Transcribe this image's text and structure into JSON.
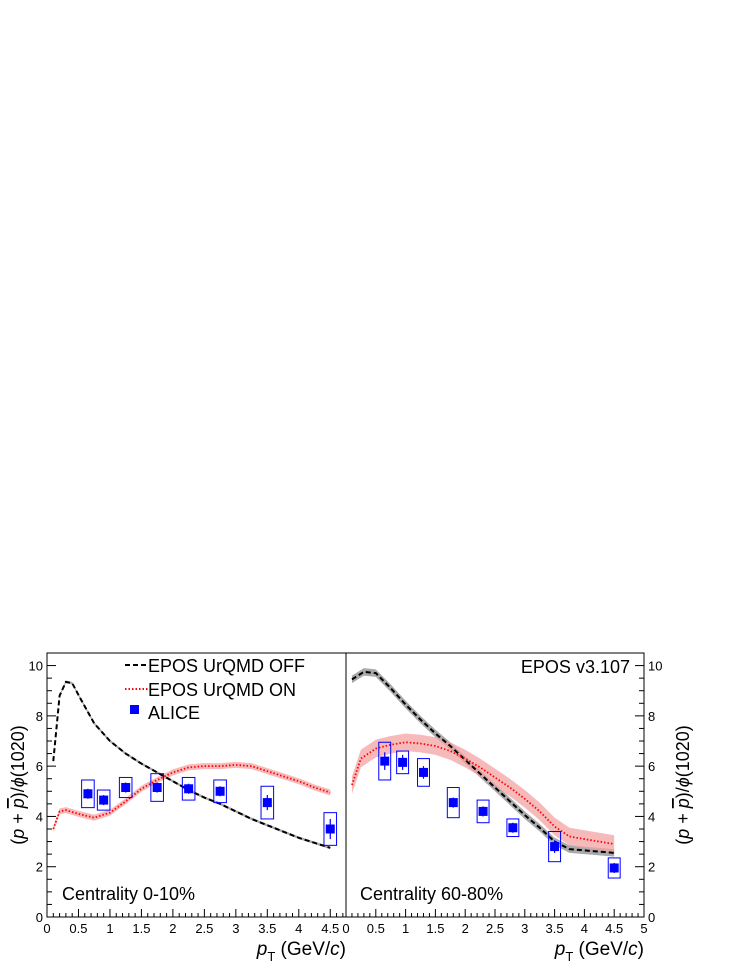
{
  "colors": {
    "off": "#000000",
    "on": "#ff0000",
    "off_band": "#9a9a9a",
    "on_band": "#f4a3a3",
    "alice": "#0000ff"
  },
  "legend": {
    "off": "EPOS UrQMD OFF",
    "on": "EPOS UrQMD ON",
    "alice": "ALICE"
  },
  "model_label": "EPOS v3.107",
  "chart_data": [
    {
      "type": "line",
      "panel": "left",
      "label": "Centrality 0-10%",
      "xlabel_main": "p",
      "xlabel_sub": "T",
      "xlabel_rest": " (GeV/c)",
      "ylabel": "(p + p)/ϕ(1020)",
      "xlim": [
        0,
        4.75
      ],
      "ylim": [
        0,
        10.5
      ],
      "x_ticks": [
        "0",
        "0.5",
        "1",
        "1.5",
        "2",
        "2.5",
        "3",
        "3.5",
        "4",
        "4.5"
      ],
      "y_ticks": [
        "0",
        "2",
        "4",
        "6",
        "8",
        "10"
      ],
      "legend_position": "top-right",
      "series": [
        {
          "name": "EPOS UrQMD OFF",
          "style": "dashed",
          "x": [
            0.1,
            0.2,
            0.3,
            0.4,
            0.55,
            0.75,
            1.0,
            1.25,
            1.5,
            1.75,
            2.0,
            2.25,
            2.5,
            2.75,
            3.0,
            3.25,
            3.5,
            3.75,
            4.0,
            4.25,
            4.5
          ],
          "y": [
            6.2,
            8.8,
            9.35,
            9.3,
            8.6,
            7.7,
            7.0,
            6.5,
            6.1,
            5.75,
            5.4,
            5.05,
            4.75,
            4.5,
            4.2,
            3.9,
            3.65,
            3.4,
            3.15,
            2.95,
            2.75
          ],
          "band": 0.05
        },
        {
          "name": "EPOS UrQMD ON",
          "style": "dotted",
          "x": [
            0.1,
            0.2,
            0.3,
            0.5,
            0.75,
            1.0,
            1.25,
            1.5,
            1.75,
            2.0,
            2.25,
            2.5,
            2.75,
            3.0,
            3.25,
            3.5,
            3.75,
            4.0,
            4.25,
            4.5
          ],
          "y": [
            3.5,
            4.2,
            4.25,
            4.1,
            3.95,
            4.15,
            4.6,
            5.1,
            5.45,
            5.75,
            5.95,
            6.0,
            6.0,
            6.05,
            6.0,
            5.8,
            5.6,
            5.4,
            5.15,
            4.95
          ],
          "band": 0.12
        },
        {
          "name": "ALICE",
          "style": "points",
          "x": [
            0.65,
            0.9,
            1.25,
            1.75,
            2.25,
            2.75,
            3.5,
            4.5
          ],
          "y": [
            4.9,
            4.65,
            5.15,
            5.15,
            5.1,
            5.0,
            4.55,
            3.5
          ],
          "stat_err": [
            0.2,
            0.2,
            0.2,
            0.2,
            0.2,
            0.2,
            0.3,
            0.4
          ],
          "sys_err": [
            0.55,
            0.4,
            0.4,
            0.55,
            0.45,
            0.45,
            0.65,
            0.65
          ],
          "box_halfwidth": [
            0.1,
            0.1,
            0.1,
            0.1,
            0.1,
            0.1,
            0.1,
            0.1
          ]
        }
      ]
    },
    {
      "type": "line",
      "panel": "right",
      "label": "Centrality 60-80%",
      "xlabel_main": "p",
      "xlabel_sub": "T",
      "xlabel_rest": " (GeV/c)",
      "ylabel": "(p + p)/ϕ(1020)",
      "xlim": [
        0,
        5
      ],
      "ylim": [
        0,
        10.5
      ],
      "x_ticks": [
        "0",
        "0.5",
        "1",
        "1.5",
        "2",
        "2.5",
        "3",
        "3.5",
        "4",
        "4.5",
        "5"
      ],
      "y_ticks": [
        "0",
        "2",
        "4",
        "6",
        "8",
        "10"
      ],
      "series": [
        {
          "name": "EPOS UrQMD OFF",
          "style": "dashed",
          "x": [
            0.1,
            0.3,
            0.5,
            0.75,
            1.0,
            1.25,
            1.5,
            1.75,
            2.0,
            2.25,
            2.5,
            2.75,
            3.0,
            3.25,
            3.5,
            3.75,
            4.0,
            4.25,
            4.5
          ],
          "y": [
            9.45,
            9.75,
            9.7,
            9.1,
            8.45,
            7.85,
            7.3,
            6.8,
            6.25,
            5.7,
            5.15,
            4.6,
            4.05,
            3.55,
            3.0,
            2.7,
            2.65,
            2.6,
            2.55
          ],
          "band": 0.15
        },
        {
          "name": "EPOS UrQMD ON",
          "style": "dotted",
          "x": [
            0.1,
            0.25,
            0.5,
            0.75,
            1.0,
            1.25,
            1.5,
            1.75,
            2.0,
            2.25,
            2.5,
            2.75,
            3.0,
            3.25,
            3.5,
            3.75,
            4.0,
            4.25,
            4.5
          ],
          "y": [
            5.25,
            6.3,
            6.7,
            6.85,
            6.95,
            6.9,
            6.8,
            6.6,
            6.3,
            5.95,
            5.55,
            5.15,
            4.7,
            4.2,
            3.6,
            3.2,
            3.1,
            3.0,
            2.9
          ],
          "band": 0.35
        },
        {
          "name": "ALICE",
          "style": "points",
          "x": [
            0.65,
            0.95,
            1.3,
            1.8,
            2.3,
            2.8,
            3.5,
            4.5
          ],
          "y": [
            6.2,
            6.15,
            5.75,
            4.55,
            4.2,
            3.55,
            2.8,
            1.95
          ],
          "stat_err": [
            0.35,
            0.3,
            0.25,
            0.2,
            0.2,
            0.2,
            0.25,
            0.2
          ],
          "sys_err": [
            0.75,
            0.45,
            0.55,
            0.6,
            0.45,
            0.35,
            0.6,
            0.4
          ],
          "box_halfwidth": [
            0.1,
            0.1,
            0.1,
            0.1,
            0.1,
            0.1,
            0.1,
            0.1
          ]
        }
      ]
    }
  ]
}
